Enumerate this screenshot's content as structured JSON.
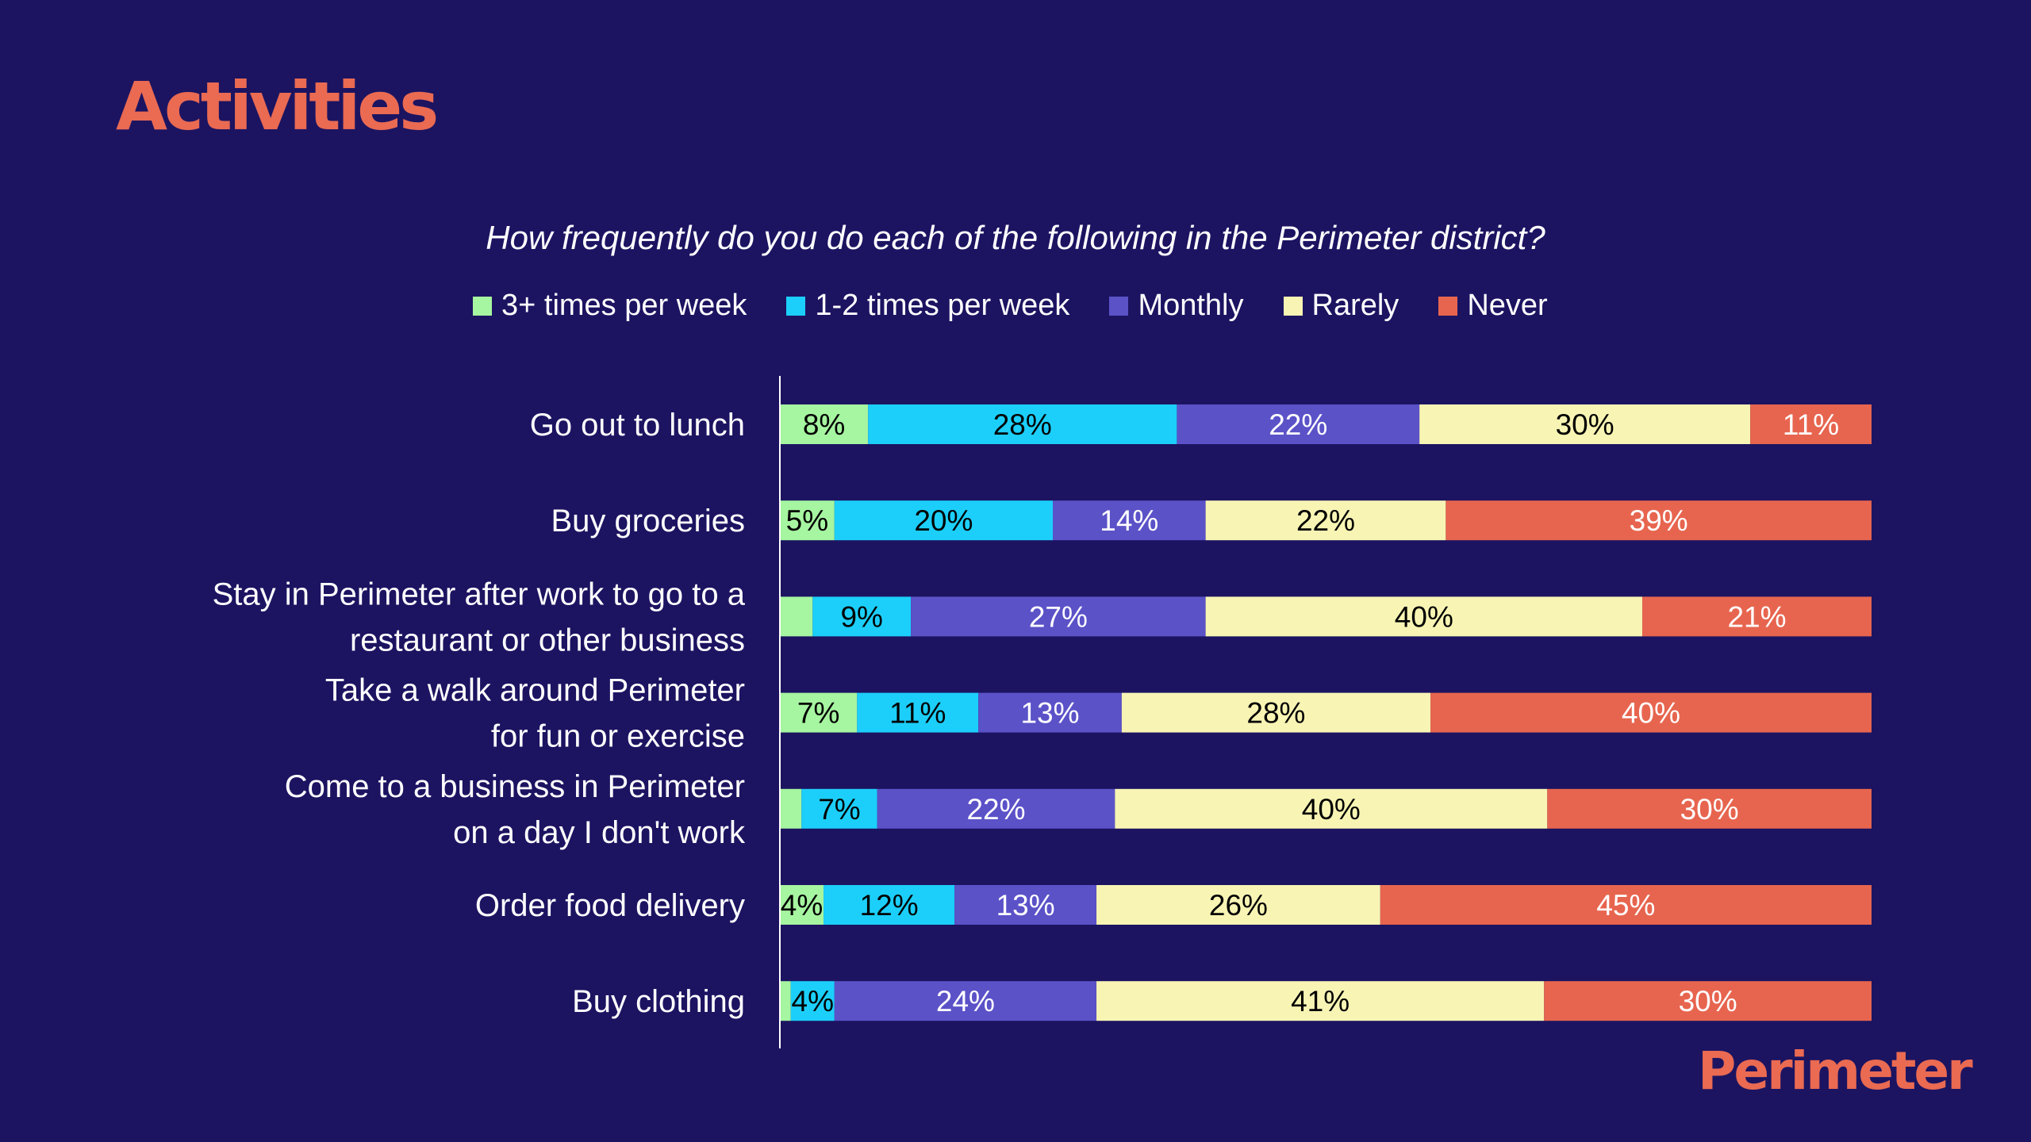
{
  "slide": {
    "title": "Activities",
    "brand": "Perimeter"
  },
  "colors": {
    "background": "#1c1461",
    "title": "#ea6a52",
    "axis": "#ffffff"
  },
  "chart_data": {
    "type": "bar",
    "orientation": "horizontal",
    "stacked": true,
    "title": "How frequently do you do each of the following in the Perimeter district?",
    "legend_position": "top",
    "grid": false,
    "xlim": [
      0,
      100
    ],
    "categories": [
      [
        "Go out to lunch"
      ],
      [
        "Buy groceries"
      ],
      [
        "Stay in Perimeter after work to go to a",
        "restaurant or other business"
      ],
      [
        "Take a walk around Perimeter",
        "for fun or exercise"
      ],
      [
        "Come to a business in Perimeter",
        "on a day I don't work"
      ],
      [
        "Order food delivery"
      ],
      [
        "Buy clothing"
      ]
    ],
    "series": [
      {
        "name": "3+ times per week",
        "color": "#a6f5a0",
        "label_color": "#000000",
        "values": [
          8,
          5,
          3,
          7,
          2,
          4,
          1
        ],
        "labels": [
          "8%",
          "5%",
          "",
          "7%",
          "",
          "4%",
          ""
        ]
      },
      {
        "name": "1-2 times per week",
        "color": "#1ccffa",
        "label_color": "#000000",
        "values": [
          28,
          20,
          9,
          11,
          7,
          12,
          4
        ],
        "labels": [
          "28%",
          "20%",
          "9%",
          "11%",
          "7%",
          "12%",
          "4%"
        ]
      },
      {
        "name": "Monthly",
        "color": "#5b52c8",
        "label_color": "#ffffff",
        "values": [
          22,
          14,
          27,
          13,
          22,
          13,
          24
        ],
        "labels": [
          "22%",
          "14%",
          "27%",
          "13%",
          "22%",
          "13%",
          "24%"
        ]
      },
      {
        "name": "Rarely",
        "color": "#f8f4b4",
        "label_color": "#000000",
        "values": [
          30,
          22,
          40,
          28,
          40,
          26,
          41
        ],
        "labels": [
          "30%",
          "22%",
          "40%",
          "28%",
          "40%",
          "26%",
          "41%"
        ]
      },
      {
        "name": "Never",
        "color": "#e7654f",
        "label_color": "#ffffff",
        "values": [
          11,
          39,
          21,
          40,
          30,
          45,
          30
        ],
        "labels": [
          "11%",
          "39%",
          "21%",
          "40%",
          "30%",
          "45%",
          "30%"
        ]
      }
    ]
  }
}
